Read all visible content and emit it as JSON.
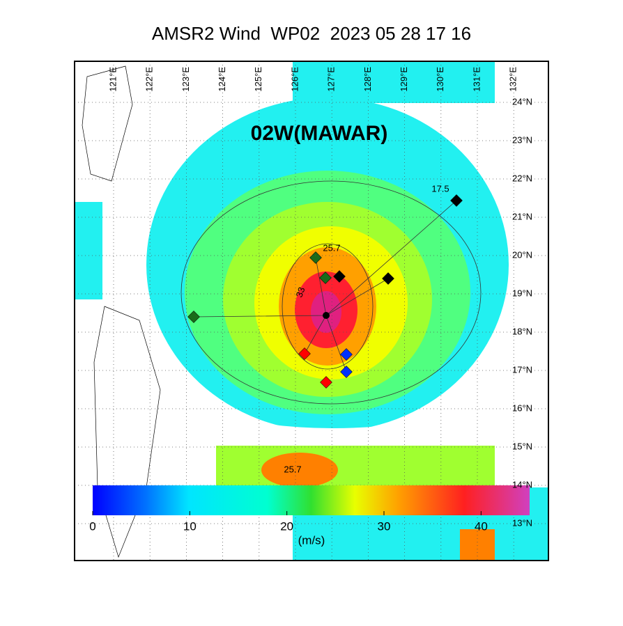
{
  "header": {
    "title": "AMSR2 Wind  WP02  2023 05 28 17 16"
  },
  "map": {
    "storm_label": "02W(MAWAR)",
    "lon_labels": [
      "121°E",
      "122°E",
      "123°E",
      "124°E",
      "125°E",
      "126°E",
      "127°E",
      "128°E",
      "129°E",
      "130°E",
      "131°E",
      "132°E"
    ],
    "lat_labels": [
      "24°N",
      "23°N",
      "22°N",
      "21°N",
      "20°N",
      "19°N",
      "18°N",
      "17°N",
      "16°N",
      "15°N",
      "14°N",
      "13°N"
    ],
    "contour_labels": [
      "17.5",
      "25.7",
      "33",
      "25.7"
    ]
  },
  "colorbar": {
    "lim": [
      0,
      45
    ],
    "ticks": [
      0,
      10,
      20,
      30,
      40
    ],
    "unit": "(m/s)"
  }
}
